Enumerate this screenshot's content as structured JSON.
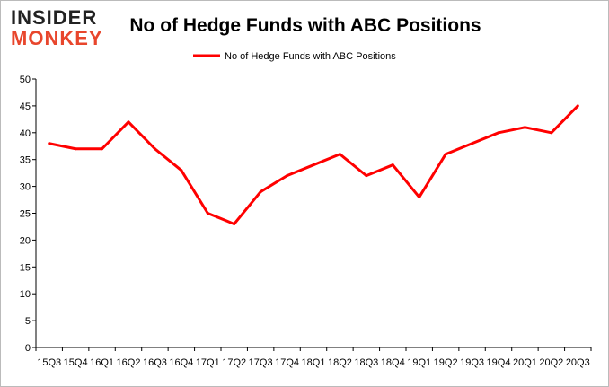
{
  "logo": {
    "line1": "INSIDER",
    "line2": "MONKEY",
    "color_dark": "#222222",
    "color_accent": "#e8462c"
  },
  "chart_data": {
    "type": "line",
    "title": "No of Hedge Funds with ABC Positions",
    "xlabel": "",
    "ylabel": "",
    "categories": [
      "15Q3",
      "15Q4",
      "16Q1",
      "16Q2",
      "16Q3",
      "16Q4",
      "17Q1",
      "17Q2",
      "17Q3",
      "17Q4",
      "18Q1",
      "18Q2",
      "18Q3",
      "18Q4",
      "19Q1",
      "19Q2",
      "19Q3",
      "19Q4",
      "20Q1",
      "20Q2",
      "20Q3"
    ],
    "series": [
      {
        "name": "No of Hedge Funds with ABC Positions",
        "color": "#ff0000",
        "values": [
          38,
          37,
          37,
          42,
          37,
          33,
          25,
          23,
          29,
          32,
          34,
          36,
          32,
          34,
          28,
          36,
          38,
          40,
          41,
          40,
          45
        ]
      }
    ],
    "ylim": [
      0,
      50
    ],
    "yticks": [
      0,
      5,
      10,
      15,
      20,
      25,
      30,
      35,
      40,
      45,
      50
    ],
    "grid": false,
    "legend_position": "top-right"
  }
}
